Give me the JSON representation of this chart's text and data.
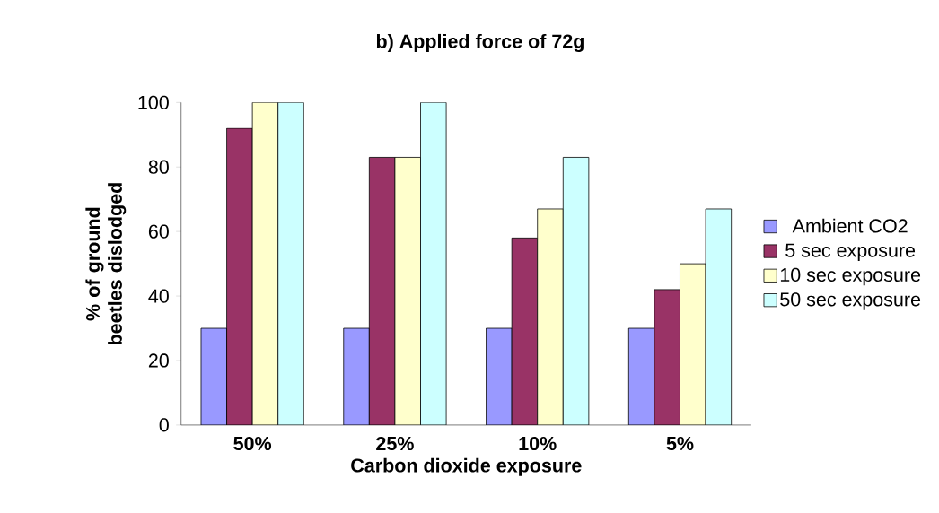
{
  "chart_data": {
    "type": "bar",
    "title": "b) Applied force of 72g",
    "xlabel": "Carbon dioxide exposure",
    "ylabel": "% of ground beetles dislodged",
    "categories": [
      "50%",
      "25%",
      "10%",
      "5%"
    ],
    "series": [
      {
        "name": "Ambient CO2",
        "color": "#9999ff",
        "values": [
          30,
          30,
          30,
          30
        ]
      },
      {
        "name": "5 sec exposure",
        "color": "#993366",
        "values": [
          92,
          83,
          58,
          42
        ]
      },
      {
        "name": "10 sec exposure",
        "color": "#ffffcc",
        "values": [
          100,
          83,
          67,
          50
        ]
      },
      {
        "name": "50 sec exposure",
        "color": "#ccffff",
        "values": [
          100,
          100,
          83,
          67
        ]
      }
    ],
    "ylim": [
      0,
      100
    ],
    "yticks": [
      0,
      20,
      40,
      60,
      80,
      100
    ],
    "legend": "right"
  }
}
